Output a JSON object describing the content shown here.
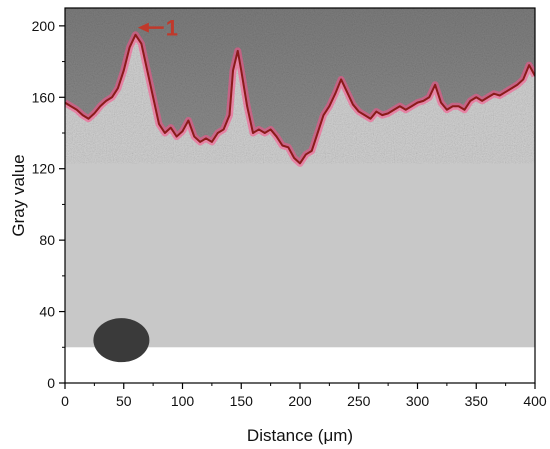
{
  "chart_data": {
    "type": "line",
    "title": "",
    "xlabel": "Distance (μm)",
    "ylabel": "Gray value",
    "xlim": [
      0,
      400
    ],
    "ylim": [
      0,
      210
    ],
    "x_ticks": [
      0,
      50,
      100,
      150,
      200,
      250,
      300,
      350,
      400
    ],
    "y_ticks": [
      0,
      40,
      80,
      120,
      160,
      200
    ],
    "grid": false,
    "background": "SEM micrograph overlay (gray) behind the profile, image region y ≈ 20–210",
    "annotation": "1",
    "series": [
      {
        "color": "#8b1a1a",
        "x": [
          0,
          5,
          10,
          15,
          20,
          25,
          30,
          35,
          40,
          45,
          50,
          55,
          60,
          65,
          70,
          75,
          80,
          85,
          90,
          95,
          100,
          105,
          110,
          115,
          120,
          125,
          130,
          135,
          140,
          143,
          147,
          150,
          155,
          160,
          165,
          170,
          175,
          180,
          185,
          190,
          195,
          200,
          205,
          210,
          215,
          220,
          225,
          230,
          235,
          240,
          245,
          250,
          255,
          260,
          265,
          270,
          275,
          280,
          285,
          290,
          295,
          300,
          305,
          310,
          315,
          320,
          325,
          330,
          335,
          340,
          345,
          350,
          355,
          360,
          365,
          370,
          375,
          380,
          385,
          390,
          395,
          400
        ],
        "values": [
          157,
          155,
          153,
          150,
          148,
          151,
          155,
          158,
          160,
          165,
          175,
          188,
          195,
          190,
          175,
          160,
          145,
          140,
          143,
          138,
          141,
          147,
          138,
          135,
          137,
          135,
          140,
          142,
          150,
          175,
          186,
          175,
          155,
          140,
          142,
          140,
          142,
          138,
          133,
          132,
          126,
          123,
          128,
          130,
          140,
          150,
          155,
          162,
          170,
          163,
          156,
          152,
          150,
          148,
          152,
          150,
          151,
          153,
          155,
          153,
          155,
          157,
          158,
          160,
          167,
          157,
          153,
          155,
          155,
          153,
          158,
          160,
          158,
          160,
          162,
          161,
          163,
          165,
          167,
          170,
          178,
          172
        ]
      }
    ]
  }
}
